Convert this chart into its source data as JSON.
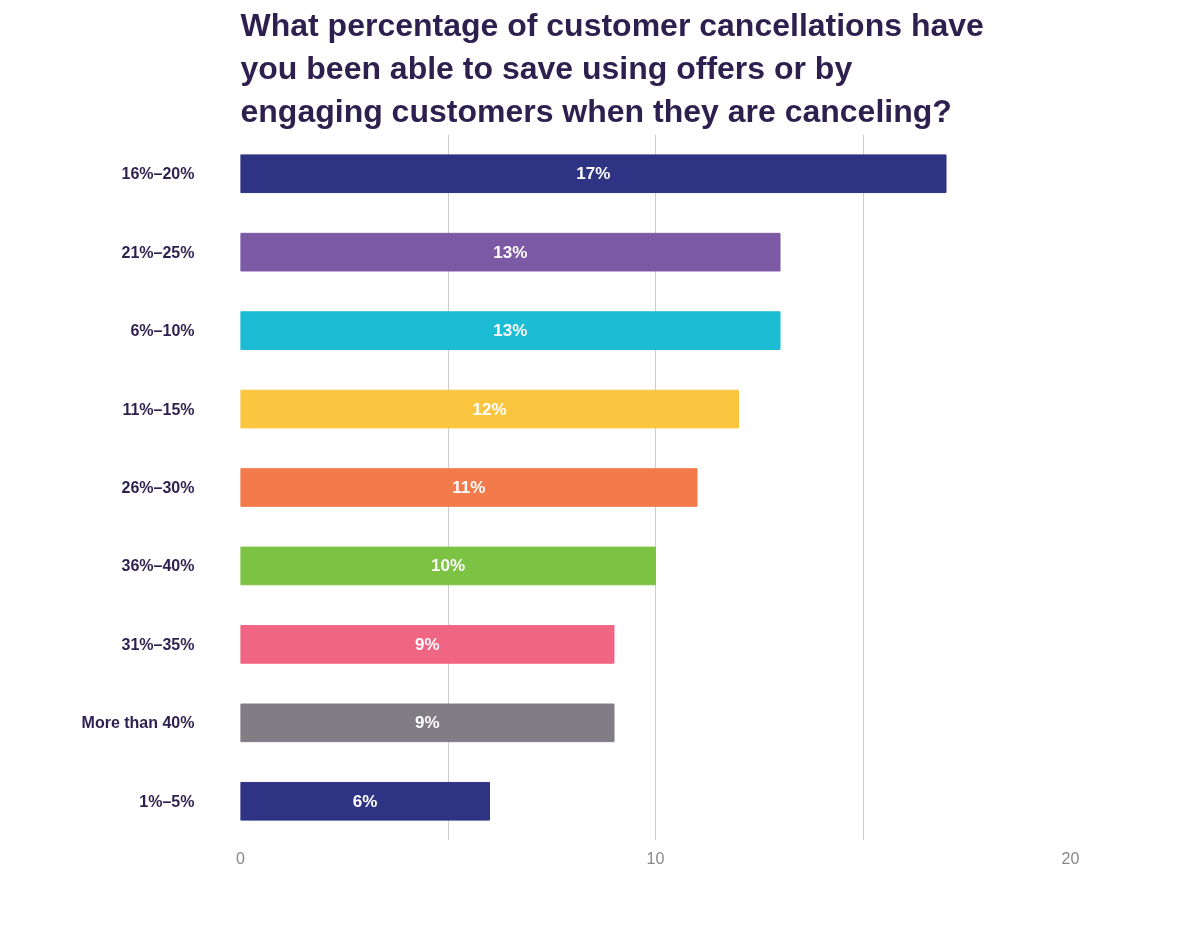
{
  "chart_data": {
    "type": "bar",
    "orientation": "horizontal",
    "title": "What percentage of customer cancellations have you been able to save using offers or by engaging customers when they are canceling?",
    "categories": [
      "16%–20%",
      "21%–25%",
      "6%–10%",
      "11%–15%",
      "26%–30%",
      "36%–40%",
      "31%–35%",
      "More than 40%",
      "1%–5%"
    ],
    "values": [
      17,
      13,
      13,
      12,
      11,
      10,
      9,
      9,
      6
    ],
    "colors": [
      "#2e3383",
      "#7b59a5",
      "#1bbcd4",
      "#fbc63f",
      "#f37a4a",
      "#7cc243",
      "#f06583",
      "#807d84",
      "#2e3383"
    ],
    "value_labels": [
      "17%",
      "13%",
      "13%",
      "12%",
      "11%",
      "10%",
      "9%",
      "9%",
      "6%"
    ],
    "xlim": [
      0,
      20
    ],
    "xticks": [
      0,
      {
        "value": 5,
        "label": null
      },
      10,
      {
        "value": 15,
        "label": null
      },
      20
    ],
    "grid": "x"
  }
}
